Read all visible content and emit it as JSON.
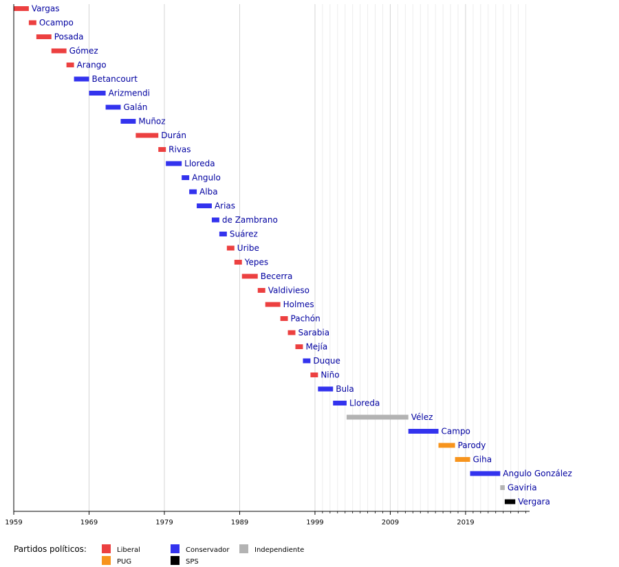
{
  "chart_data": {
    "type": "bar",
    "subtype": "timeline",
    "title": "",
    "xlabel": "",
    "ylabel": "",
    "x_ticks": [
      1959,
      1969,
      1979,
      1989,
      1999,
      2009,
      2019
    ],
    "xlim": [
      1959,
      2027.5
    ],
    "grid": "vertical",
    "legend_placement": "bottom",
    "parties": {
      "Liberal": "#ec4040",
      "PUG": "#f7941d",
      "Conservador": "#3333ee",
      "SPS": "#000000",
      "Independiente": "#b3b3b3"
    },
    "terms": [
      {
        "name": "Vargas",
        "start": 1959.0,
        "end": 1961.0,
        "party": "Liberal"
      },
      {
        "name": "Ocampo",
        "start": 1961.0,
        "end": 1962.0,
        "party": "Liberal"
      },
      {
        "name": "Posada",
        "start": 1962.0,
        "end": 1964.0,
        "party": "Liberal"
      },
      {
        "name": "Gómez",
        "start": 1964.0,
        "end": 1966.0,
        "party": "Liberal"
      },
      {
        "name": "Arango",
        "start": 1966.0,
        "end": 1967.0,
        "party": "Liberal"
      },
      {
        "name": "Betancourt",
        "start": 1967.0,
        "end": 1969.0,
        "party": "Conservador"
      },
      {
        "name": "Arizmendi",
        "start": 1969.0,
        "end": 1971.2,
        "party": "Conservador"
      },
      {
        "name": "Galán",
        "start": 1971.2,
        "end": 1973.2,
        "party": "Conservador"
      },
      {
        "name": "Muñoz",
        "start": 1973.2,
        "end": 1975.2,
        "party": "Conservador"
      },
      {
        "name": "Durán",
        "start": 1975.2,
        "end": 1978.2,
        "party": "Liberal"
      },
      {
        "name": "Rivas",
        "start": 1978.2,
        "end": 1979.2,
        "party": "Liberal"
      },
      {
        "name": "Lloreda",
        "start": 1979.2,
        "end": 1981.3,
        "party": "Conservador"
      },
      {
        "name": "Angulo",
        "start": 1981.3,
        "end": 1982.3,
        "party": "Conservador"
      },
      {
        "name": "Alba",
        "start": 1982.3,
        "end": 1983.3,
        "party": "Conservador"
      },
      {
        "name": "Arias",
        "start": 1983.3,
        "end": 1985.3,
        "party": "Conservador"
      },
      {
        "name": "de Zambrano",
        "start": 1985.3,
        "end": 1986.3,
        "party": "Conservador"
      },
      {
        "name": "Suárez",
        "start": 1986.3,
        "end": 1987.3,
        "party": "Conservador"
      },
      {
        "name": "Uribe",
        "start": 1987.3,
        "end": 1988.3,
        "party": "Liberal"
      },
      {
        "name": "Yepes",
        "start": 1988.3,
        "end": 1989.3,
        "party": "Liberal"
      },
      {
        "name": "Becerra",
        "start": 1989.3,
        "end": 1991.4,
        "party": "Liberal"
      },
      {
        "name": "Valdivieso",
        "start": 1991.4,
        "end": 1992.4,
        "party": "Liberal"
      },
      {
        "name": "Holmes",
        "start": 1992.4,
        "end": 1994.4,
        "party": "Liberal"
      },
      {
        "name": "Pachón",
        "start": 1994.4,
        "end": 1995.4,
        "party": "Liberal"
      },
      {
        "name": "Sarabia",
        "start": 1995.4,
        "end": 1996.4,
        "party": "Liberal"
      },
      {
        "name": "Mejía",
        "start": 1996.4,
        "end": 1997.4,
        "party": "Liberal"
      },
      {
        "name": "Duque",
        "start": 1997.4,
        "end": 1998.4,
        "party": "Conservador"
      },
      {
        "name": "Niño",
        "start": 1998.4,
        "end": 1999.4,
        "party": "Liberal"
      },
      {
        "name": "Bula",
        "start": 1999.4,
        "end": 2001.4,
        "party": "Conservador"
      },
      {
        "name": "Lloreda",
        "start": 2001.4,
        "end": 2003.2,
        "party": "Conservador"
      },
      {
        "name": "Vélez",
        "start": 2003.2,
        "end": 2011.4,
        "party": "Independiente"
      },
      {
        "name": "Campo",
        "start": 2011.4,
        "end": 2015.4,
        "party": "Conservador"
      },
      {
        "name": "Parody",
        "start": 2015.4,
        "end": 2017.6,
        "party": "PUG"
      },
      {
        "name": "Giha",
        "start": 2017.6,
        "end": 2019.6,
        "party": "PUG"
      },
      {
        "name": "Angulo González",
        "start": 2019.6,
        "end": 2023.6,
        "party": "Conservador"
      },
      {
        "name": "Gaviria",
        "start": 2023.6,
        "end": 2024.2,
        "party": "Independiente"
      },
      {
        "name": "Vergara",
        "start": 2024.2,
        "end": 2025.6,
        "party": "SPS"
      }
    ],
    "legend": {
      "title": "Partidos políticos:",
      "entries": [
        {
          "label": "Liberal",
          "party": "Liberal"
        },
        {
          "label": "Conservador",
          "party": "Conservador"
        },
        {
          "label": "Independiente",
          "party": "Independiente"
        },
        {
          "label": "PUG",
          "party": "PUG"
        },
        {
          "label": "SPS",
          "party": "SPS"
        }
      ]
    }
  }
}
